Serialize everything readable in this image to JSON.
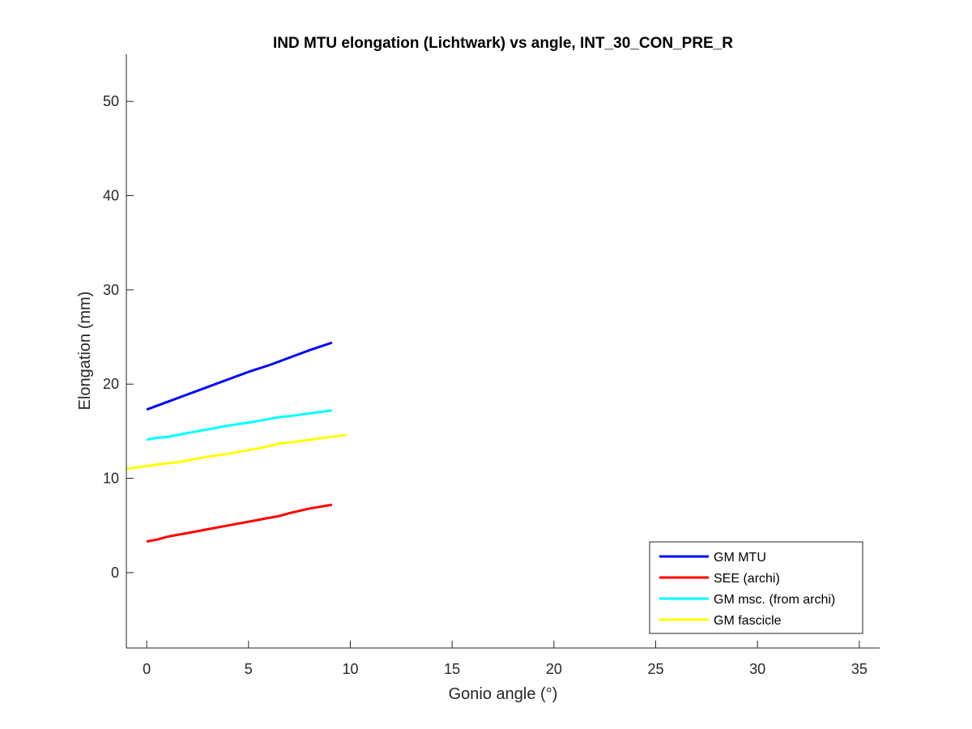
{
  "chart_data": {
    "type": "line",
    "title": "IND MTU elongation (Lichtwark) vs angle, INT_30_CON_PRE_R",
    "xlabel": "Gonio angle (°)",
    "ylabel": "Elongation (mm)",
    "xlim": [
      -1,
      36
    ],
    "ylim": [
      -8,
      55
    ],
    "xticks": [
      0,
      5,
      10,
      15,
      20,
      25,
      30,
      35
    ],
    "yticks": [
      0,
      10,
      20,
      30,
      40,
      50
    ],
    "grid": false,
    "legend_location": "bottom-right",
    "series": [
      {
        "name": "GM MTU",
        "color": "#0000ff",
        "x": [
          0,
          1,
          2,
          3,
          4,
          5,
          6,
          7,
          8,
          9.1
        ],
        "y": [
          17.3,
          18.1,
          18.9,
          19.7,
          20.5,
          21.3,
          22.0,
          22.8,
          23.6,
          24.4
        ]
      },
      {
        "name": "SEE (archi)",
        "color": "#ff0000",
        "x": [
          0,
          0.5,
          1,
          1.5,
          2,
          3,
          4,
          5,
          6,
          6.5,
          7,
          8,
          9.1
        ],
        "y": [
          3.3,
          3.5,
          3.8,
          4.0,
          4.2,
          4.6,
          5.0,
          5.4,
          5.8,
          6.0,
          6.3,
          6.8,
          7.2
        ]
      },
      {
        "name": "GM msc. (from archi)",
        "color": "#00ffff",
        "x": [
          0,
          0.5,
          1,
          1.5,
          2,
          3,
          4,
          5,
          6,
          6.5,
          7,
          8,
          9.1
        ],
        "y": [
          14.1,
          14.3,
          14.4,
          14.6,
          14.8,
          15.2,
          15.6,
          15.9,
          16.3,
          16.5,
          16.6,
          16.9,
          17.2
        ]
      },
      {
        "name": "GM fascicle",
        "color": "#ffff00",
        "x": [
          -1,
          0,
          1,
          1.5,
          2,
          3,
          4,
          5,
          6,
          6.5,
          7,
          8,
          9,
          9.8
        ],
        "y": [
          11.0,
          11.3,
          11.6,
          11.7,
          11.9,
          12.3,
          12.6,
          13.0,
          13.4,
          13.7,
          13.8,
          14.1,
          14.4,
          14.6
        ]
      }
    ]
  }
}
